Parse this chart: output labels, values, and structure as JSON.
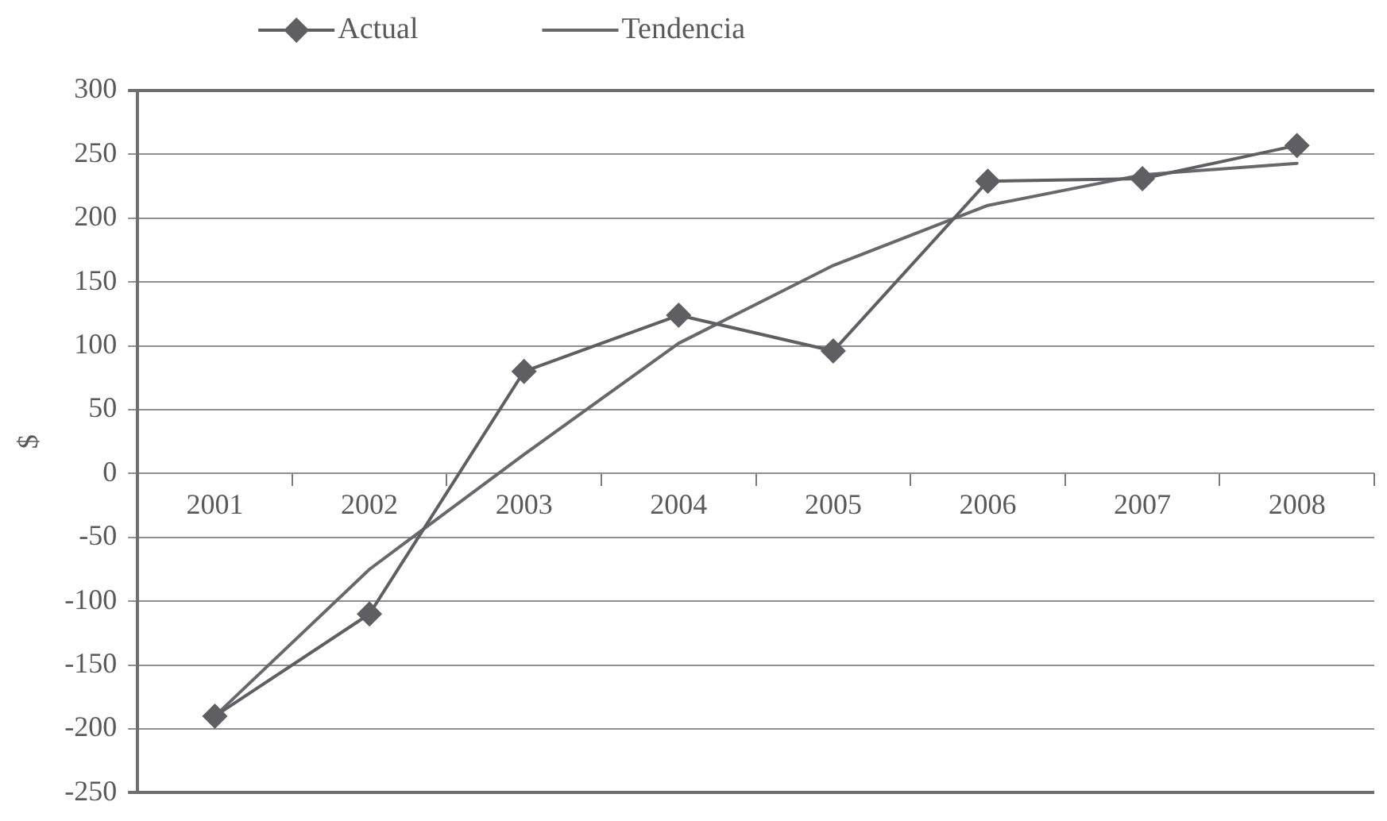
{
  "chart_data": {
    "type": "line",
    "ylabel": "$",
    "legend": "top",
    "grid": "y",
    "categories": [
      "2001",
      "2002",
      "2003",
      "2004",
      "2005",
      "2006",
      "2007",
      "2008"
    ],
    "series": [
      {
        "name": "Actual",
        "color": "#5f5f63",
        "marker": "diamond",
        "values": [
          -190,
          -110,
          80,
          124,
          96,
          229,
          231,
          257
        ]
      },
      {
        "name": "Tendencia",
        "color": "#68686c",
        "marker": "none",
        "values": [
          -190,
          -75,
          15,
          102,
          163,
          210,
          234,
          243
        ]
      }
    ],
    "ylim": [
      -250,
      300
    ],
    "yticks": [
      -250,
      -200,
      -150,
      -100,
      -50,
      0,
      50,
      100,
      150,
      200,
      250,
      300
    ]
  }
}
